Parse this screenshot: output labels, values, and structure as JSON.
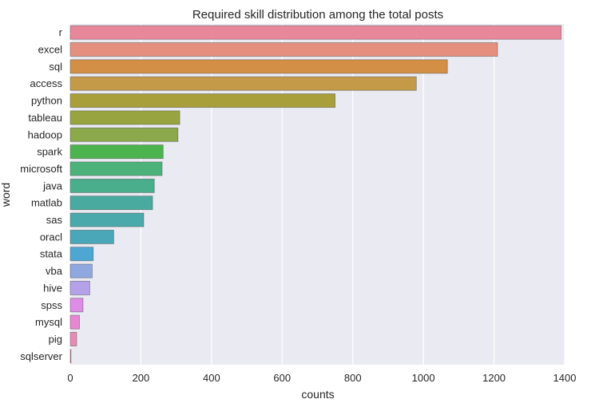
{
  "chart_data": {
    "type": "bar",
    "orientation": "horizontal",
    "title": "Required skill distribution among the total posts",
    "xlabel": "counts",
    "ylabel": "word",
    "xlim": [
      0,
      1400
    ],
    "xticks": [
      0,
      200,
      400,
      600,
      800,
      1000,
      1200,
      1400
    ],
    "grid": true,
    "background_color": "#EAEAF2",
    "categories": [
      "r",
      "excel",
      "sql",
      "access",
      "python",
      "tableau",
      "hadoop",
      "spark",
      "microsoft",
      "java",
      "matlab",
      "sas",
      "oracl",
      "stata",
      "vba",
      "hive",
      "spss",
      "mysql",
      "pig",
      "sqlserver"
    ],
    "values": [
      1390,
      1210,
      1068,
      980,
      750,
      310,
      305,
      263,
      260,
      238,
      233,
      208,
      123,
      65,
      62,
      55,
      36,
      26,
      18,
      2
    ],
    "colors": [
      "#E8879A",
      "#E58F7F",
      "#D38F45",
      "#C49A48",
      "#A89E3A",
      "#98A43F",
      "#8BA84A",
      "#4DB34E",
      "#4DB27A",
      "#4AAE8D",
      "#49AB9F",
      "#4AA9AA",
      "#4AA7B7",
      "#4DA7D2",
      "#8FA8E0",
      "#B4A1EA",
      "#DD8DE5",
      "#E886D1",
      "#E78BB6",
      "#E8879A"
    ]
  }
}
